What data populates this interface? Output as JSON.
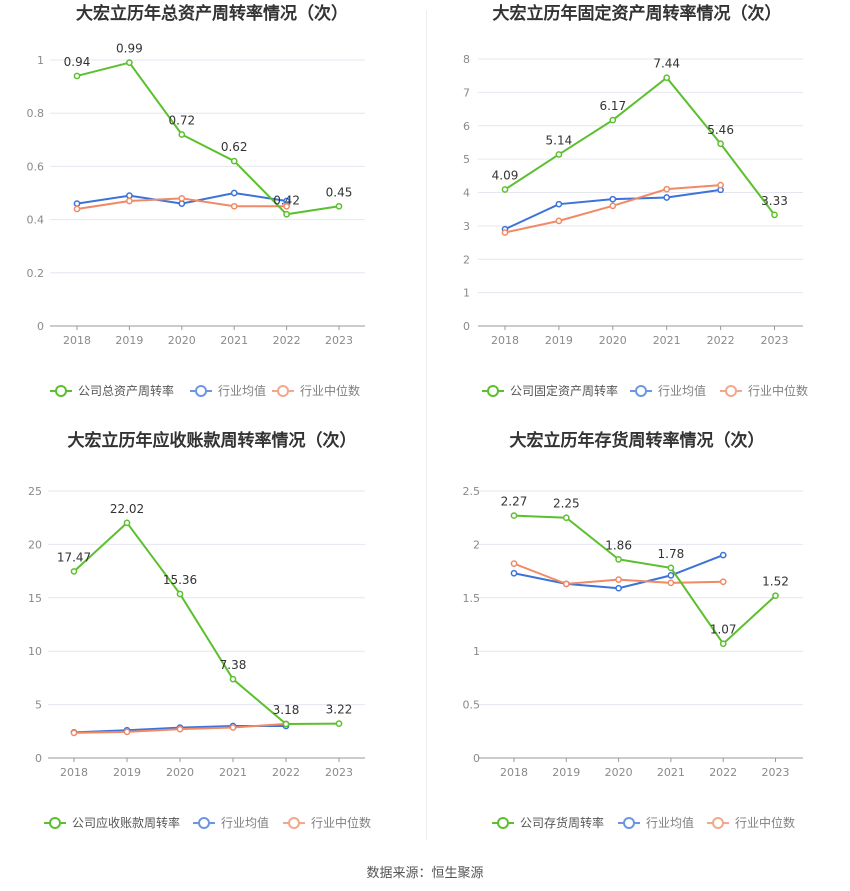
{
  "source_text": "数据来源：恒生聚源",
  "colors": {
    "company": "#5cc02e",
    "avg": "#3b73db",
    "median": "#f08a65",
    "grid": "#e6e6f0",
    "axis": "#8a8a8a"
  },
  "chart_data": [
    {
      "type": "line",
      "title": "大宏立历年总资产周转率情况（次）",
      "x": [
        "2018",
        "2019",
        "2020",
        "2021",
        "2022",
        "2023"
      ],
      "ylim": [
        0,
        1.1
      ],
      "yticks": [
        0,
        0.2,
        0.4,
        0.6,
        0.8,
        1
      ],
      "ytick_labels": [
        "0",
        "0.2",
        "0.4",
        "0.6",
        "0.8",
        "1"
      ],
      "grid": true,
      "legend_position": "bottom",
      "series": [
        {
          "name": "公司总资产周转率",
          "values": [
            0.94,
            0.99,
            0.72,
            0.62,
            0.42,
            0.45
          ],
          "labels": [
            "0.94",
            "0.99",
            "0.72",
            "0.62",
            "0.42",
            "0.45"
          ]
        },
        {
          "name": "行业均值",
          "values": [
            0.46,
            0.49,
            0.46,
            0.5,
            0.47,
            null
          ]
        },
        {
          "name": "行业中位数",
          "values": [
            0.44,
            0.47,
            0.48,
            0.45,
            0.45,
            null
          ]
        }
      ]
    },
    {
      "type": "line",
      "title": "大宏立历年固定资产周转率情况（次）",
      "x": [
        "2018",
        "2019",
        "2020",
        "2021",
        "2022",
        "2023"
      ],
      "ylim": [
        0,
        8
      ],
      "yticks": [
        0,
        1,
        2,
        3,
        4,
        5,
        6,
        7,
        8
      ],
      "ytick_labels": [
        "0",
        "1",
        "2",
        "3",
        "4",
        "5",
        "6",
        "7",
        "8"
      ],
      "grid": true,
      "legend_position": "bottom",
      "series": [
        {
          "name": "公司固定资产周转率",
          "values": [
            4.09,
            5.14,
            6.17,
            7.44,
            5.46,
            3.33
          ],
          "labels": [
            "4.09",
            "5.14",
            "6.17",
            "7.44",
            "5.46",
            "3.33"
          ]
        },
        {
          "name": "行业均值",
          "values": [
            2.9,
            3.65,
            3.8,
            3.85,
            4.08,
            null
          ]
        },
        {
          "name": "行业中位数",
          "values": [
            2.8,
            3.15,
            3.6,
            4.1,
            4.22,
            null
          ]
        }
      ]
    },
    {
      "type": "line",
      "title": "大宏立历年应收账款周转率情况（次）",
      "x": [
        "2018",
        "2019",
        "2020",
        "2021",
        "2022",
        "2023"
      ],
      "ylim": [
        0,
        25
      ],
      "yticks": [
        0,
        5,
        10,
        15,
        20,
        25
      ],
      "ytick_labels": [
        "0",
        "5",
        "10",
        "15",
        "20",
        "25"
      ],
      "grid": true,
      "legend_position": "bottom",
      "series": [
        {
          "name": "公司应收账款周转率",
          "values": [
            17.47,
            22.02,
            15.36,
            7.38,
            3.18,
            3.22
          ],
          "labels": [
            "17.47",
            "22.02",
            "15.36",
            "7.38",
            "3.18",
            "3.22"
          ]
        },
        {
          "name": "行业均值",
          "values": [
            2.4,
            2.6,
            2.85,
            3.0,
            3.0,
            null
          ]
        },
        {
          "name": "行业中位数",
          "values": [
            2.35,
            2.45,
            2.7,
            2.85,
            3.2,
            null
          ]
        }
      ]
    },
    {
      "type": "line",
      "title": "大宏立历年存货周转率情况（次）",
      "x": [
        "2018",
        "2019",
        "2020",
        "2021",
        "2022",
        "2023"
      ],
      "ylim": [
        0,
        2.5
      ],
      "yticks": [
        0,
        0.5,
        1,
        1.5,
        2,
        2.5
      ],
      "ytick_labels": [
        "0",
        "0.5",
        "1",
        "1.5",
        "2",
        "2.5"
      ],
      "grid": true,
      "legend_position": "bottom",
      "series": [
        {
          "name": "公司存货周转率",
          "values": [
            2.27,
            2.25,
            1.86,
            1.78,
            1.07,
            1.52
          ],
          "labels": [
            "2.27",
            "2.25",
            "1.86",
            "1.78",
            "1.07",
            "1.52"
          ]
        },
        {
          "name": "行业均值",
          "values": [
            1.73,
            1.63,
            1.59,
            1.71,
            1.9,
            null
          ]
        },
        {
          "name": "行业中位数",
          "values": [
            1.82,
            1.63,
            1.67,
            1.64,
            1.65,
            null
          ]
        }
      ]
    }
  ]
}
